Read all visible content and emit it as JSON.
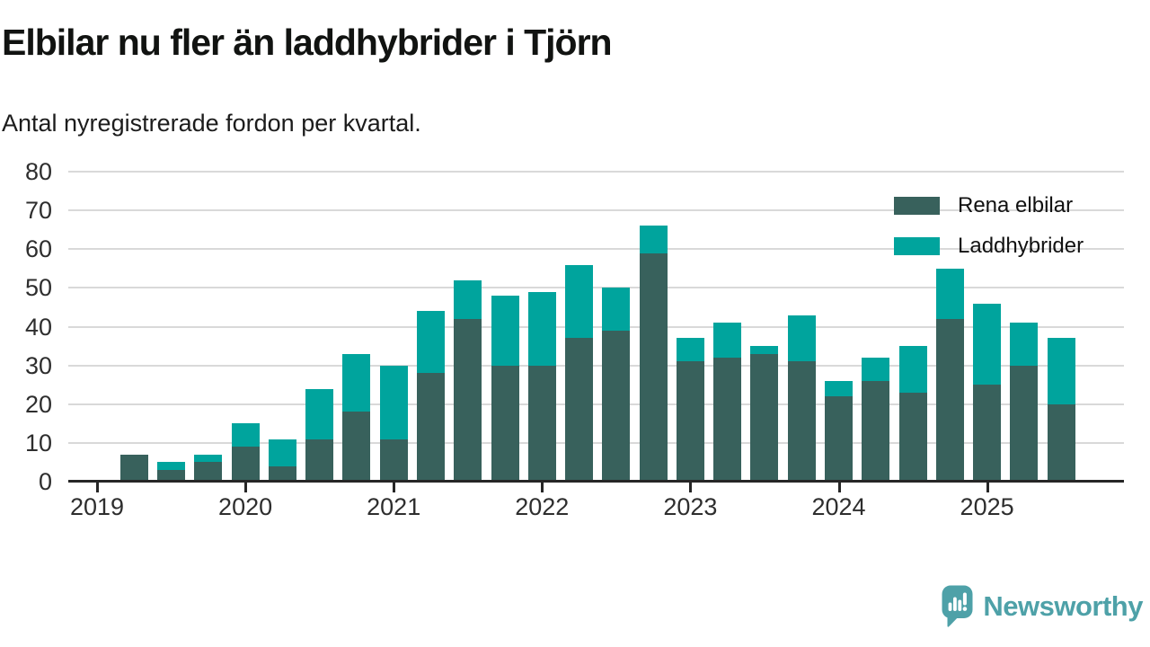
{
  "header": {
    "title": "Elbilar nu fler än laddhybrider i Tjörn",
    "subtitle": "Antal nyregistrerade fordon per kvartal."
  },
  "legend": {
    "items": [
      {
        "label": "Rena elbilar",
        "color": "#38615C"
      },
      {
        "label": "Laddhybrider",
        "color": "#00A49D"
      }
    ]
  },
  "attribution": {
    "brand": "Newsworthy",
    "color": "#4EA1A8",
    "icon": "newsworthy-speech-bubble-bar-chart-icon"
  },
  "chart_data": {
    "type": "bar",
    "stacked": true,
    "title": "Elbilar nu fler än laddhybrider i Tjörn",
    "subtitle": "Antal nyregistrerade fordon per kvartal.",
    "x": [
      "2019 Q2",
      "2019 Q3",
      "2019 Q4",
      "2020 Q1",
      "2020 Q2",
      "2020 Q3",
      "2020 Q4",
      "2021 Q1",
      "2021 Q2",
      "2021 Q3",
      "2021 Q4",
      "2022 Q1",
      "2022 Q2",
      "2022 Q3",
      "2022 Q4",
      "2023 Q1",
      "2023 Q2",
      "2023 Q3",
      "2023 Q4",
      "2024 Q1",
      "2024 Q2",
      "2024 Q3",
      "2024 Q4",
      "2025 Q1",
      "2025 Q2",
      "2025 Q3"
    ],
    "series": [
      {
        "name": "Rena elbilar",
        "color": "#38615C",
        "values": [
          7,
          3,
          5,
          9,
          4,
          11,
          18,
          11,
          28,
          42,
          30,
          30,
          37,
          39,
          59,
          31,
          32,
          33,
          31,
          22,
          26,
          23,
          42,
          25,
          30,
          20
        ]
      },
      {
        "name": "Laddhybrider",
        "color": "#00A49D",
        "values": [
          0,
          2,
          2,
          6,
          7,
          13,
          15,
          19,
          16,
          10,
          18,
          19,
          19,
          11,
          7,
          6,
          9,
          2,
          12,
          4,
          6,
          12,
          13,
          21,
          11,
          17
        ]
      }
    ],
    "totals": [
      7,
      5,
      7,
      15,
      11,
      24,
      33,
      30,
      44,
      52,
      48,
      49,
      56,
      50,
      66,
      37,
      41,
      35,
      43,
      26,
      32,
      35,
      55,
      46,
      41,
      37
    ],
    "xticks": [
      "2019",
      "2020",
      "2021",
      "2022",
      "2023",
      "2024",
      "2025"
    ],
    "yticks": [
      0,
      10,
      20,
      30,
      40,
      50,
      60,
      70,
      80
    ],
    "ylim": [
      0,
      80
    ],
    "grid": "horizontal",
    "grid_color": "#d9d9d9",
    "axis_color": "#262626",
    "legend_position": "top-right"
  }
}
